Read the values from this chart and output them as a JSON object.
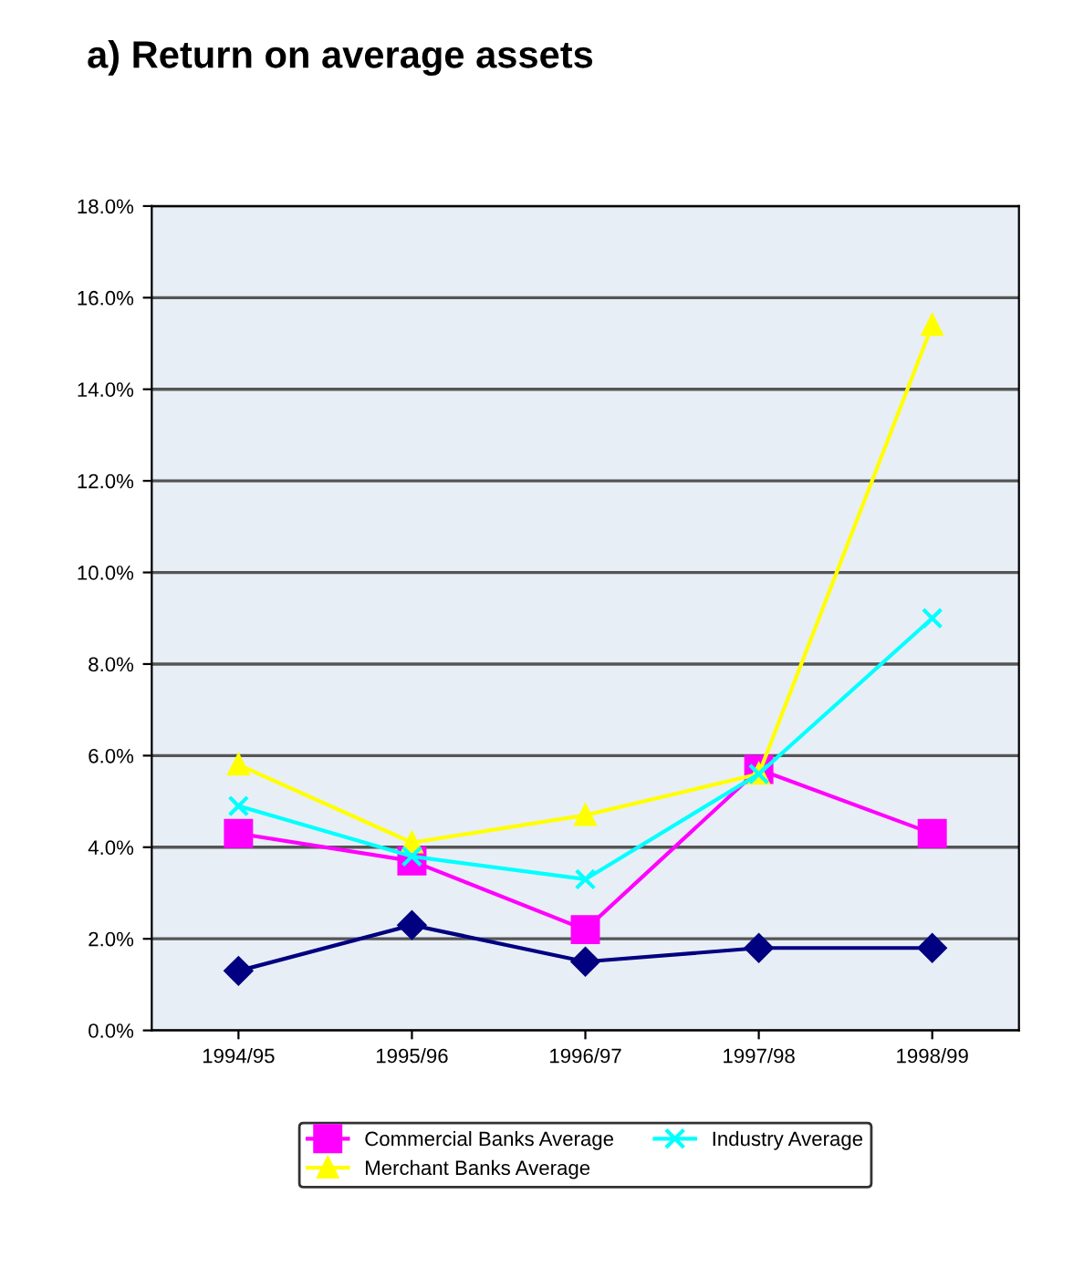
{
  "chart_data": {
    "type": "line",
    "title": "a) Return on average assets",
    "categories": [
      "1994/95",
      "1995/96",
      "1996/97",
      "1997/98",
      "1998/99"
    ],
    "series": [
      {
        "color": "#000080",
        "marker": "diamond",
        "values": [
          1.3,
          2.3,
          1.5,
          1.8,
          1.8
        ]
      },
      {
        "name": "Commercial Banks Average",
        "color": "#ff00ff",
        "marker": "square",
        "values": [
          4.3,
          3.7,
          2.2,
          5.7,
          4.3
        ]
      },
      {
        "name": "Merchant Banks Average",
        "color": "#ffff00",
        "marker": "triangle",
        "values": [
          5.8,
          4.1,
          4.7,
          5.6,
          15.4
        ]
      },
      {
        "name": "Industry Average",
        "color": "#00ffff",
        "marker": "cross",
        "values": [
          4.9,
          3.8,
          3.3,
          5.6,
          9.0
        ]
      }
    ],
    "ylim": [
      0,
      18
    ],
    "yticks": [
      {
        "value": 0,
        "label": "0.0%"
      },
      {
        "value": 2,
        "label": "2.0%"
      },
      {
        "value": 4,
        "label": "4.0%"
      },
      {
        "value": 6,
        "label": "6.0%"
      },
      {
        "value": 8,
        "label": "8.0%"
      },
      {
        "value": 10,
        "label": "10.0%"
      },
      {
        "value": 12,
        "label": "12.0%"
      },
      {
        "value": 14,
        "label": "14.0%"
      },
      {
        "value": 16,
        "label": "16.0%"
      },
      {
        "value": 18,
        "label": "18.0%"
      }
    ],
    "grid": "y",
    "legend": "bottom",
    "line_style": "solid"
  }
}
